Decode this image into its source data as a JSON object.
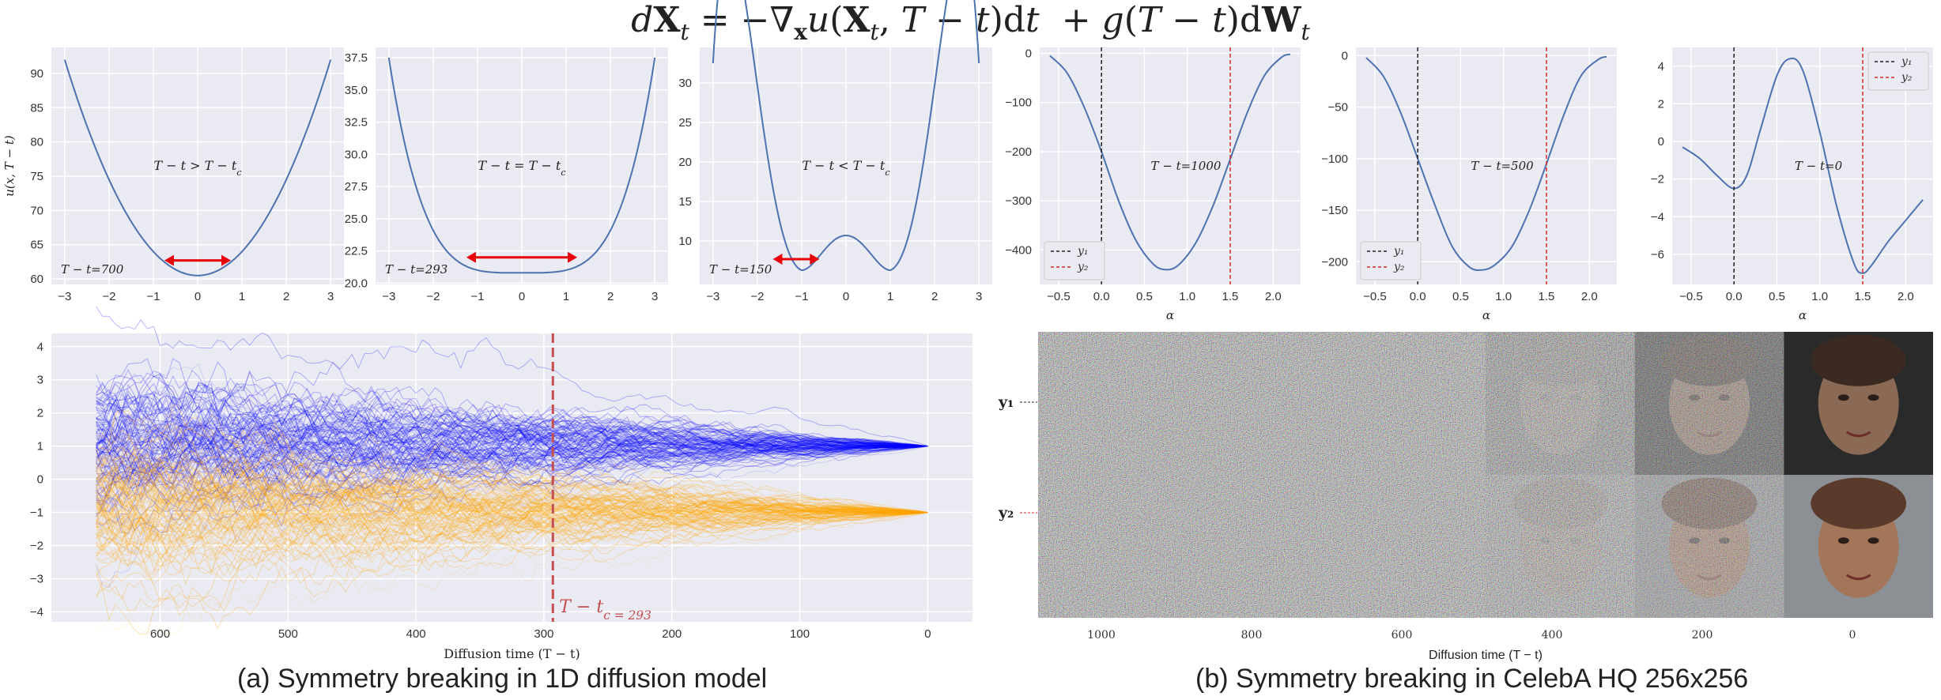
{
  "equation": "dX_t = −∇_x u(X_t, T − t)dt + g(T − t)dW_t",
  "captions": {
    "a": "(a) Symmetry breaking in 1D diffusion model",
    "b": "(b) Symmetry breaking in CelebA HQ 256x256"
  },
  "colors": {
    "panel_bg": "#eaeaf2",
    "curve": "#4c72b0",
    "arrow": "#e8000b",
    "blue_traj": "#0000ff",
    "orange_traj": "#ffa500",
    "critical_line": "#c44e52",
    "y1_line": "#222222",
    "y2_line": "#d62728"
  },
  "chart_data": [
    {
      "id": "potential-700",
      "type": "line",
      "ylabel": "u(x, T − t)",
      "label": "T − t > T − t_c",
      "time_label": "T − t=700",
      "xlim": [
        -3.3,
        3.3
      ],
      "ylim": [
        59.2,
        93.8
      ],
      "xticks": [
        -3,
        -2,
        -1,
        0,
        1,
        2,
        3
      ],
      "yticks": [
        60,
        65,
        70,
        75,
        80,
        85,
        90
      ],
      "tick_labels_x": [
        "−3",
        "−2",
        "−1",
        "0",
        "1",
        "2",
        "3"
      ],
      "tick_labels_y": [
        "60",
        "65",
        "70",
        "75",
        "80",
        "85",
        "90"
      ],
      "curve": {
        "min_x": 0,
        "min_y": 60.5,
        "edge_y": 92,
        "well_depth": 0
      },
      "arrow": {
        "x_from": -0.75,
        "x_to": 0.75,
        "y": 62.7
      }
    },
    {
      "id": "potential-293",
      "type": "line",
      "label": "T − t = T − t_c",
      "time_label": "T − t=293",
      "xlim": [
        -3.3,
        3.3
      ],
      "ylim": [
        19.9,
        38.3
      ],
      "xticks": [
        -3,
        -2,
        -1,
        0,
        1,
        2,
        3
      ],
      "yticks": [
        20.0,
        22.5,
        25.0,
        27.5,
        30.0,
        32.5,
        35.0,
        37.5
      ],
      "tick_labels_x": [
        "−3",
        "−2",
        "−1",
        "0",
        "1",
        "2",
        "3"
      ],
      "tick_labels_y": [
        "20.0",
        "22.5",
        "25.0",
        "27.5",
        "30.0",
        "32.5",
        "35.0",
        "37.5"
      ],
      "curve": {
        "min_x": 0,
        "min_y": 20.8,
        "edge_y": 37.5,
        "flat": true
      },
      "arrow": {
        "x_from": -1.25,
        "x_to": 1.25,
        "y": 22.0
      }
    },
    {
      "id": "potential-150",
      "type": "line",
      "label": "T − t < T − t_c",
      "time_label": "T − t=150",
      "xlim": [
        -3.3,
        3.3
      ],
      "ylim": [
        4.5,
        34.5
      ],
      "xticks": [
        -3,
        -2,
        -1,
        0,
        1,
        2,
        3
      ],
      "yticks": [
        10,
        15,
        20,
        25,
        30
      ],
      "tick_labels_x": [
        "−3",
        "−2",
        "−1",
        "0",
        "1",
        "2",
        "3"
      ],
      "tick_labels_y": [
        "10",
        "15",
        "20",
        "25",
        "30"
      ],
      "curve": {
        "min_x": 1,
        "min_y": 6.3,
        "bump_y": 10.7,
        "edge_y": 32.5
      },
      "arrow": {
        "x_from": -1.65,
        "x_to": -0.6,
        "y": 7.7
      }
    },
    {
      "id": "celeb-1000",
      "type": "line",
      "xlabel": "α",
      "label": "T − t=1000",
      "xlim": [
        -0.72,
        2.32
      ],
      "ylim": [
        -470,
        12
      ],
      "xticks": [
        -0.5,
        0.0,
        0.5,
        1.0,
        1.5,
        2.0
      ],
      "yticks": [
        0,
        -100,
        -200,
        -300,
        -400
      ],
      "tick_labels_x": [
        "−0.5",
        "0.0",
        "0.5",
        "1.0",
        "1.5",
        "2.0"
      ],
      "tick_labels_y": [
        "0",
        "−100",
        "−200",
        "−300",
        "−400"
      ],
      "x": [
        -0.6,
        -0.4,
        -0.2,
        0.0,
        0.2,
        0.4,
        0.6,
        0.75,
        0.9,
        1.1,
        1.3,
        1.5,
        1.7,
        1.9,
        2.1,
        2.2
      ],
      "y": [
        -5,
        -40,
        -110,
        -200,
        -300,
        -380,
        -428,
        -440,
        -430,
        -385,
        -310,
        -215,
        -120,
        -45,
        -8,
        -2
      ],
      "vlines": [
        {
          "name": "y₁",
          "x": 0.0
        },
        {
          "name": "y₂",
          "x": 1.5
        }
      ],
      "legend": "lower-left",
      "legend_entries": [
        "y₁",
        "y₂"
      ]
    },
    {
      "id": "celeb-500",
      "type": "line",
      "xlabel": "α",
      "label": "T − t=500",
      "xlim": [
        -0.72,
        2.32
      ],
      "ylim": [
        -222,
        8
      ],
      "xticks": [
        -0.5,
        0.0,
        0.5,
        1.0,
        1.5,
        2.0
      ],
      "yticks": [
        0,
        -50,
        -100,
        -150,
        -200
      ],
      "tick_labels_x": [
        "−0.5",
        "0.0",
        "0.5",
        "1.0",
        "1.5",
        "2.0"
      ],
      "tick_labels_y": [
        "0",
        "−50",
        "−100",
        "−150",
        "−200"
      ],
      "x": [
        -0.6,
        -0.4,
        -0.2,
        0.0,
        0.2,
        0.4,
        0.6,
        0.75,
        0.9,
        1.1,
        1.3,
        1.5,
        1.7,
        1.9,
        2.1,
        2.2
      ],
      "y": [
        -2,
        -20,
        -55,
        -100,
        -145,
        -185,
        -205,
        -208,
        -203,
        -185,
        -150,
        -105,
        -58,
        -20,
        -4,
        -1
      ],
      "vlines": [
        {
          "name": "y₁",
          "x": 0.0
        },
        {
          "name": "y₂",
          "x": 1.5
        }
      ],
      "legend": "lower-left",
      "legend_entries": [
        "y₁",
        "y₂"
      ]
    },
    {
      "id": "celeb-0",
      "type": "line",
      "xlabel": "α",
      "label": "T − t=0",
      "xlim": [
        -0.72,
        2.32
      ],
      "ylim": [
        -7.6,
        5.0
      ],
      "xticks": [
        -0.5,
        0.0,
        0.5,
        1.0,
        1.5,
        2.0
      ],
      "yticks": [
        4,
        2,
        0,
        -2,
        -4,
        -6
      ],
      "tick_labels_x": [
        "−0.5",
        "0.0",
        "0.5",
        "1.0",
        "1.5",
        "2.0"
      ],
      "tick_labels_y": [
        "4",
        "2",
        "0",
        "−2",
        "−4",
        "−6"
      ],
      "x": [
        -0.6,
        -0.4,
        -0.2,
        0.0,
        0.15,
        0.3,
        0.5,
        0.65,
        0.8,
        1.0,
        1.2,
        1.4,
        1.5,
        1.6,
        1.8,
        2.0,
        2.2
      ],
      "y": [
        -0.3,
        -0.9,
        -1.8,
        -2.5,
        -1.8,
        0.5,
        3.5,
        4.4,
        3.8,
        0.5,
        -3.5,
        -6.5,
        -7.0,
        -6.6,
        -5.3,
        -4.2,
        -3.1
      ],
      "vlines": [
        {
          "name": "y₁",
          "x": 0.0
        },
        {
          "name": "y₂",
          "x": 1.5
        }
      ],
      "legend": "upper-right",
      "legend_entries": [
        "y₁",
        "y₂"
      ]
    },
    {
      "id": "trajectories",
      "type": "line",
      "xlabel": "Diffusion time (T − t)",
      "xlim": [
        685,
        -35
      ],
      "ylim": [
        -4.3,
        4.4
      ],
      "xticks": [
        600,
        500,
        400,
        300,
        200,
        100,
        0
      ],
      "yticks": [
        4,
        3,
        2,
        1,
        0,
        -1,
        -2,
        -3,
        -4
      ],
      "tick_labels_x": [
        "600",
        "500",
        "400",
        "300",
        "200",
        "100",
        "0"
      ],
      "tick_labels_y": [
        "4",
        "3",
        "2",
        "1",
        "0",
        "−1",
        "−2",
        "−3",
        "−4"
      ],
      "start_x": 650,
      "series": [
        {
          "target": 1
        },
        {
          "target": -1
        }
      ],
      "critical_x": 293,
      "critical_label": "T − t_c = 293"
    },
    {
      "id": "celeba-strip",
      "type": "table",
      "xlabel": "Diffusion time (T − t)",
      "row_labels": [
        "y₁",
        "y₂"
      ],
      "xtick_labels": [
        "1000",
        "800",
        "600",
        "400",
        "200",
        "0"
      ]
    }
  ]
}
